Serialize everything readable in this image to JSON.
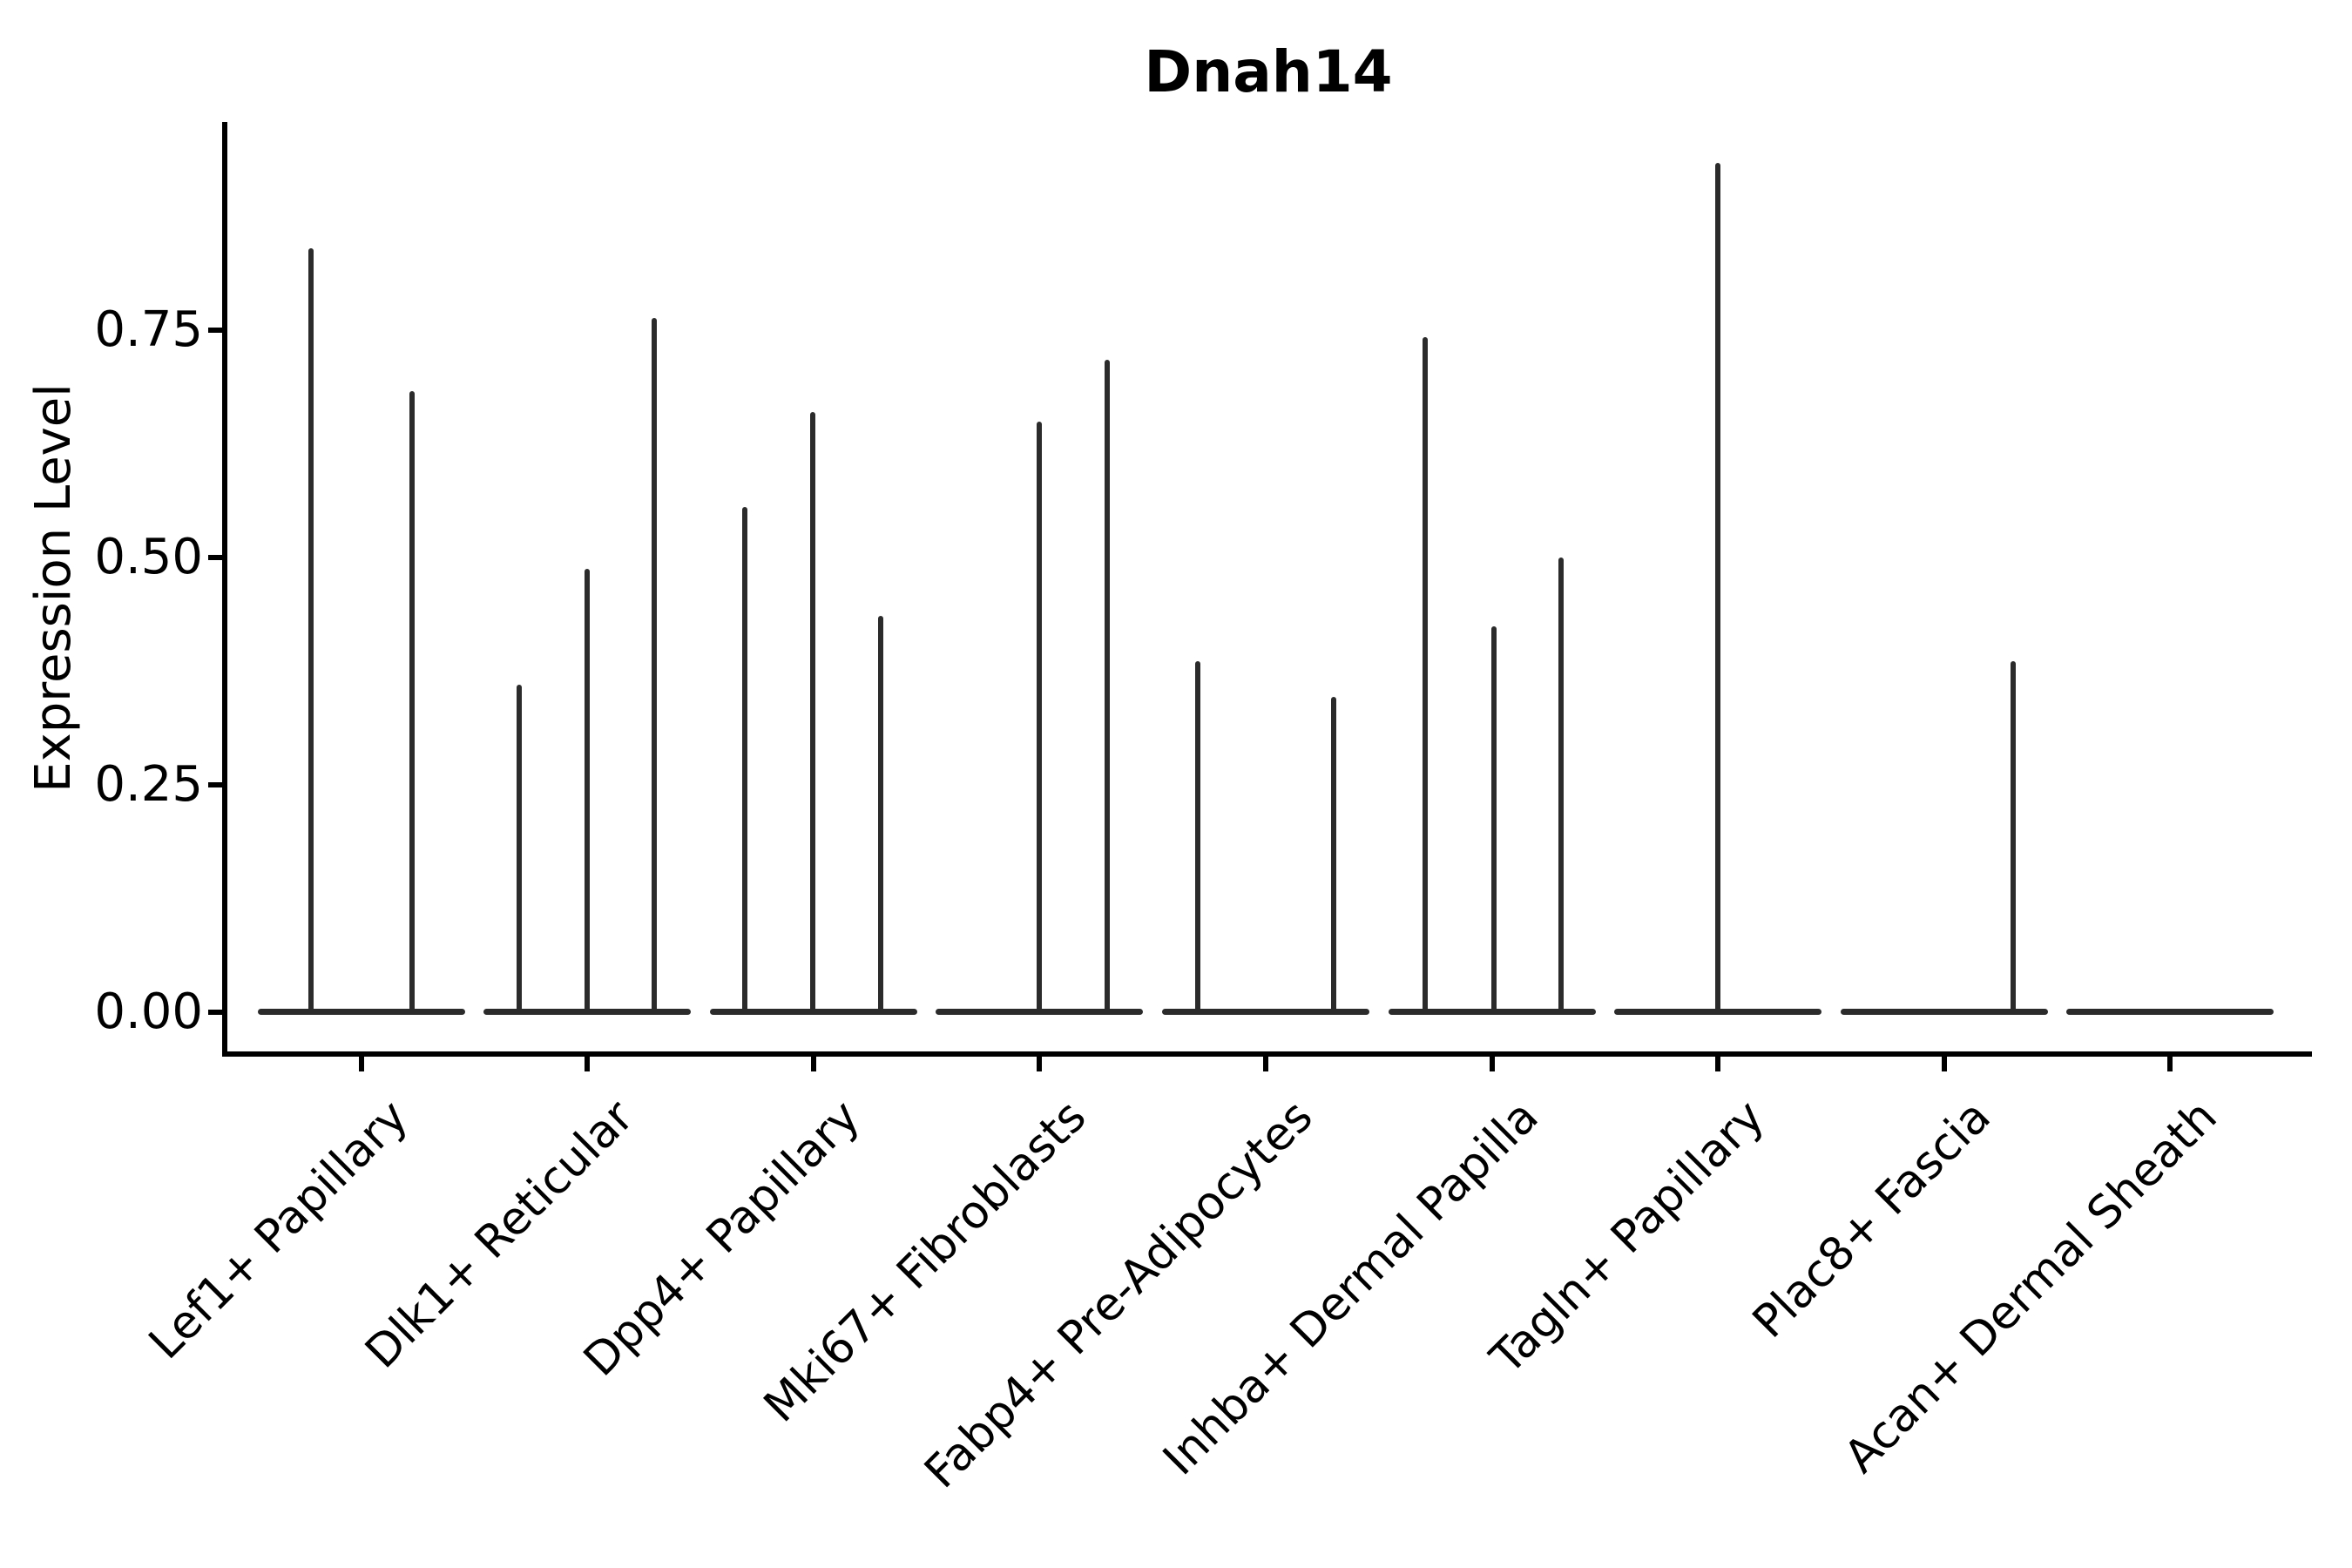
{
  "figure": {
    "title": "Dnah14"
  },
  "chart_data": {
    "type": "violin",
    "title": "Dnah14",
    "xlabel": "",
    "ylabel": "Expression Level",
    "ytick_labels": [
      "0.00",
      "0.25",
      "0.50",
      "0.75"
    ],
    "ytick_values": [
      0.0,
      0.25,
      0.5,
      0.75
    ],
    "ylim": [
      -0.047,
      0.98
    ],
    "grid": false,
    "legend": "none",
    "violin_color": "#2b2b2b",
    "axis_color": "#000000",
    "categories": [
      "Lef1+ Papillary",
      "Dlk1+ Reticular",
      "Dpp4+ Papillary",
      "Mki67+ Fibroblasts",
      "Fabp4+ Pre-Adipocytes",
      "Inhba+ Dermal Papilla",
      "Tagln+ Papillary",
      "Plac8+ Fascia",
      "Acan+ Dermal Sheath"
    ],
    "violins": [
      {
        "category": "Lef1+ Papillary",
        "spikes": [
          {
            "offset": -58,
            "max": 0.84
          },
          {
            "offset": 58,
            "max": 0.683
          }
        ]
      },
      {
        "category": "Dlk1+ Reticular",
        "spikes": [
          {
            "offset": -78,
            "max": 0.36
          },
          {
            "offset": 0,
            "max": 0.487
          },
          {
            "offset": 77,
            "max": 0.763
          }
        ]
      },
      {
        "category": "Dpp4+ Papillary",
        "spikes": [
          {
            "offset": -79,
            "max": 0.555
          },
          {
            "offset": -1,
            "max": 0.66
          },
          {
            "offset": 77,
            "max": 0.435
          }
        ]
      },
      {
        "category": "Mki67+ Fibroblasts",
        "spikes": [
          {
            "offset": 0,
            "max": 0.649
          },
          {
            "offset": 78,
            "max": 0.717
          }
        ]
      },
      {
        "category": "Fabp4+ Pre-Adipocytes",
        "spikes": [
          {
            "offset": -78,
            "max": 0.386
          },
          {
            "offset": 78,
            "max": 0.346
          }
        ]
      },
      {
        "category": "Inhba+ Dermal Papilla",
        "spikes": [
          {
            "offset": -77,
            "max": 0.742
          },
          {
            "offset": 2,
            "max": 0.424
          },
          {
            "offset": 79,
            "max": 0.5
          }
        ]
      },
      {
        "category": "Tagln+ Papillary",
        "spikes": [
          {
            "offset": 0,
            "max": 0.934
          }
        ]
      },
      {
        "category": "Plac8+ Fascia",
        "spikes": [
          {
            "offset": 79,
            "max": 0.386
          }
        ]
      },
      {
        "category": "Acan+ Dermal Sheath",
        "spikes": []
      }
    ]
  }
}
